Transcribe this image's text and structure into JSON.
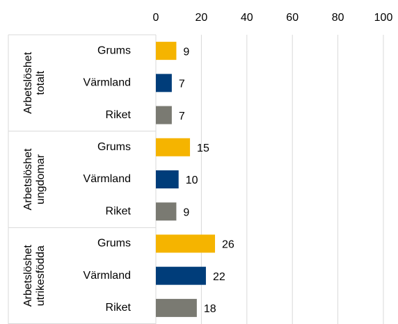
{
  "chart_data": {
    "type": "bar",
    "groups": [
      {
        "label": [
          "Arbetslöshet",
          "totalt"
        ],
        "categories": [
          "Grums",
          "Värmland",
          "Riket"
        ],
        "values": [
          9,
          7,
          7
        ]
      },
      {
        "label": [
          "Arbetslöshet",
          "ungdomar"
        ],
        "categories": [
          "Grums",
          "Värmland",
          "Riket"
        ],
        "values": [
          15,
          10,
          9
        ]
      },
      {
        "label": [
          "Arbetslöshet",
          "utrikesfödda"
        ],
        "categories": [
          "Grums",
          "Värmland",
          "Riket"
        ],
        "values": [
          26,
          22,
          18
        ]
      }
    ],
    "colors": [
      "#f5b400",
      "#003d7a",
      "#7a7a72"
    ],
    "xlim": [
      0,
      100
    ],
    "xticks": [
      0,
      20,
      40,
      60,
      80,
      100
    ],
    "grid": true
  }
}
